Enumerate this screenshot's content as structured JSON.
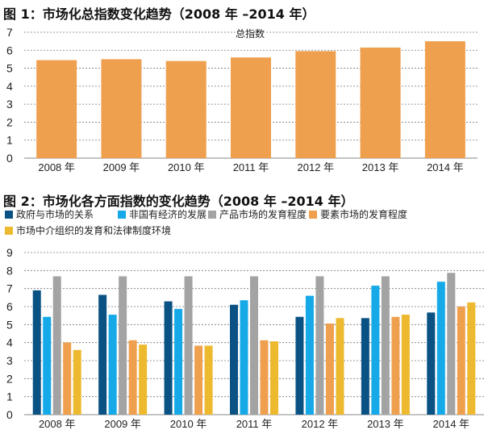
{
  "chart_data": [
    {
      "type": "bar",
      "title": "图 1：市场化总指数变化趋势（2008 年 –2014 年）",
      "categories": [
        "2008 年",
        "2009 年",
        "2010 年",
        "2011 年",
        "2012 年",
        "2013 年",
        "2014 年"
      ],
      "series": [
        {
          "name": "总指数",
          "values": [
            5.45,
            5.5,
            5.4,
            5.6,
            5.95,
            6.15,
            6.5
          ],
          "color": "#EFA04E"
        }
      ],
      "ylim": [
        0,
        7
      ],
      "yticks": [
        0,
        1,
        2,
        3,
        4,
        5,
        6,
        7
      ],
      "grid": true,
      "legend": "top-center"
    },
    {
      "type": "bar",
      "title": "图 2：市场化各方面指数的变化趋势（2008 年 –2014 年）",
      "categories": [
        "2008 年",
        "2009 年",
        "2010 年",
        "2011 年",
        "2012 年",
        "2013 年",
        "2014 年"
      ],
      "series": [
        {
          "name": "政府与市场的关系",
          "values": [
            6.9,
            6.65,
            6.29,
            6.1,
            5.43,
            5.36,
            5.67
          ],
          "color": "#0A5283"
        },
        {
          "name": "非国有经济的发展",
          "values": [
            5.43,
            5.55,
            5.87,
            6.35,
            6.6,
            7.16,
            7.38
          ],
          "color": "#15A9E8"
        },
        {
          "name": "产品市场的发育程度",
          "values": [
            7.68,
            7.68,
            7.68,
            7.68,
            7.68,
            7.68,
            7.87
          ],
          "color": "#A3A3A3"
        },
        {
          "name": "要素市场的发育程度",
          "values": [
            4.01,
            4.13,
            3.83,
            4.13,
            5.06,
            5.43,
            6.0
          ],
          "color": "#EFA04E"
        },
        {
          "name": "市场中介组织的发育和法律制度环境",
          "values": [
            3.59,
            3.89,
            3.83,
            4.07,
            5.36,
            5.55,
            6.23
          ],
          "color": "#EDB92F"
        }
      ],
      "ylim": [
        0,
        9
      ],
      "yticks": [
        0,
        1,
        2,
        3,
        4,
        5,
        6,
        7,
        8,
        9
      ],
      "grid": true,
      "legend": "top"
    }
  ]
}
